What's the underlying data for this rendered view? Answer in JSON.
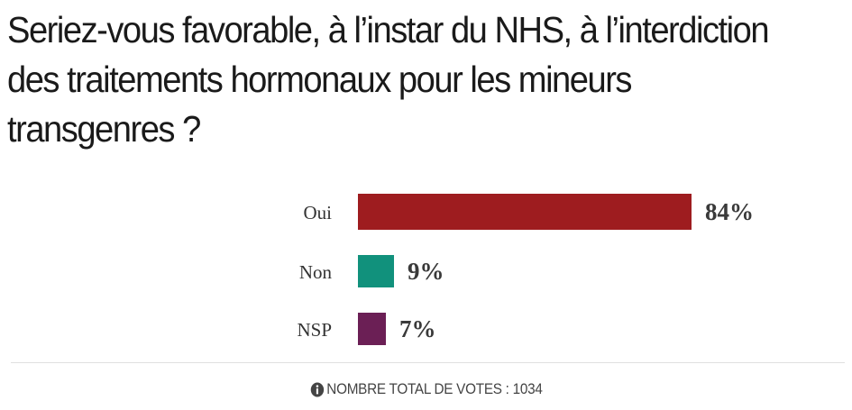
{
  "poll": {
    "question": "Seriez-vous favorable, à l’instar du NHS, à l’interdiction des traitements hormonaux pour les mineurs transgenres ?",
    "options": [
      {
        "label": "Oui",
        "percent_label": "84%",
        "percent": 84,
        "color": "#9e1c1f"
      },
      {
        "label": "Non",
        "percent_label": "9%",
        "percent": 9,
        "color": "#11917c"
      },
      {
        "label": "NSP",
        "percent_label": "7%",
        "percent": 7,
        "color": "#6b1f55"
      }
    ],
    "footer": {
      "total_votes_text": "NOMBRE TOTAL DE VOTES : 1034",
      "icon": "info-icon"
    }
  }
}
